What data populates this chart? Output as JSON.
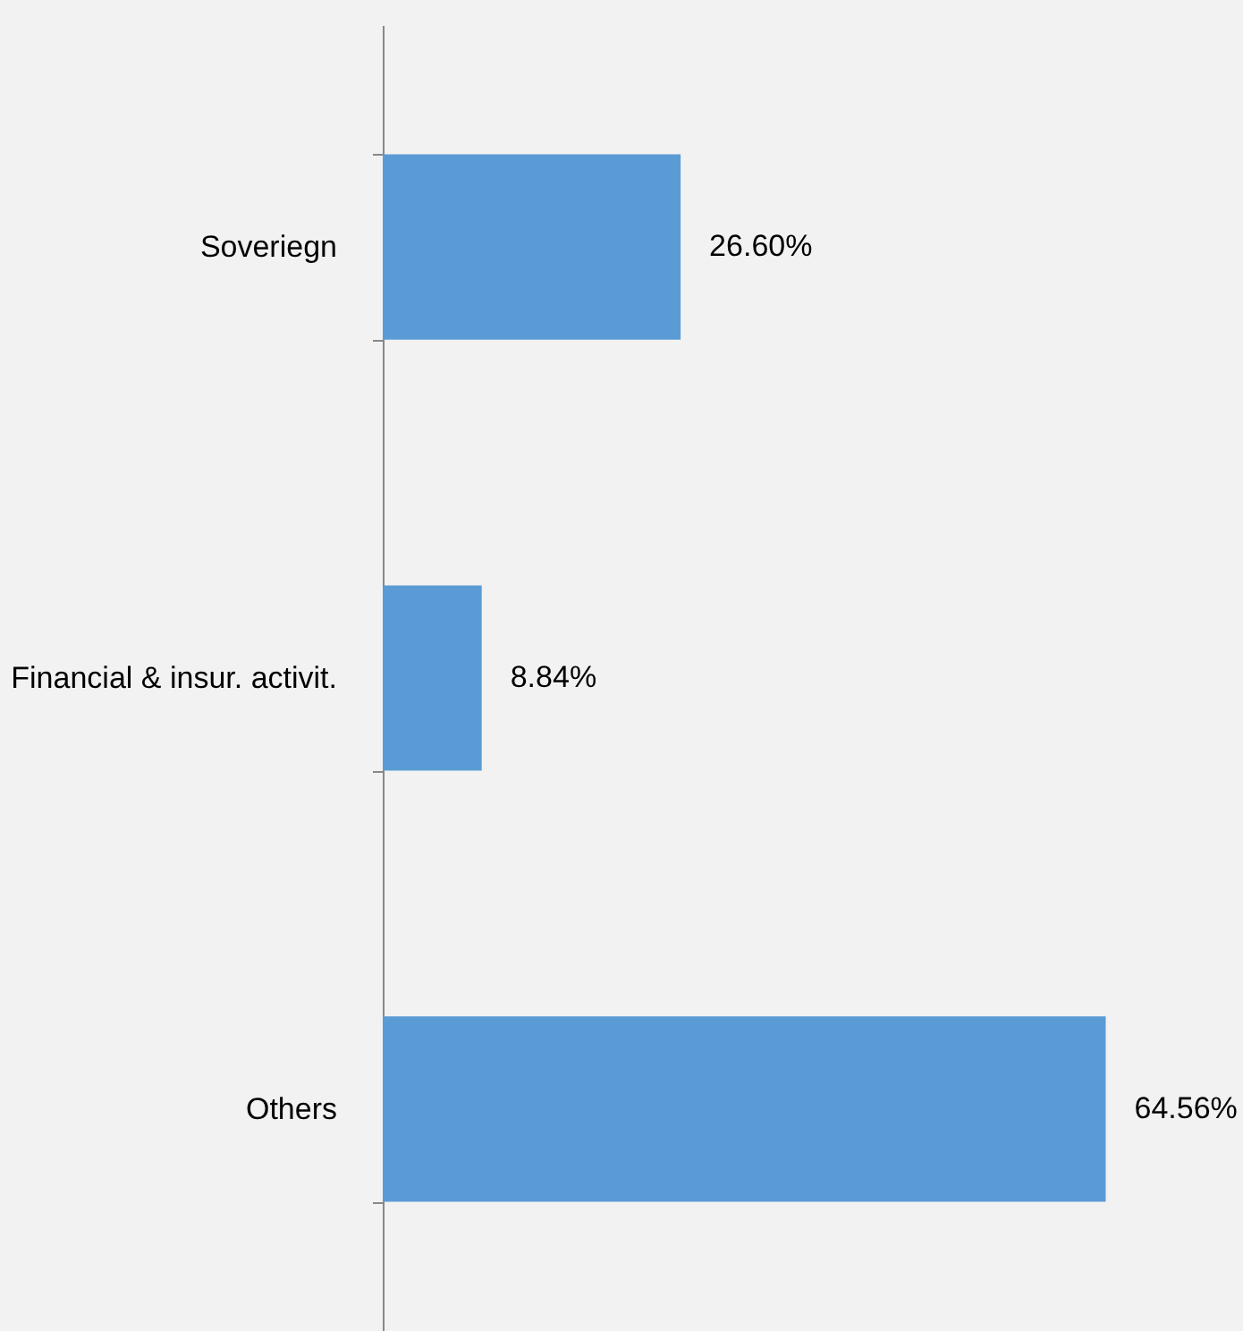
{
  "chart_data": {
    "type": "bar",
    "orientation": "horizontal",
    "categories": [
      "Soveriegn",
      "Financial & insur. activit.",
      "Others"
    ],
    "values": [
      26.6,
      8.84,
      64.56
    ],
    "value_labels": [
      "26.60%",
      "8.84%",
      "64.56%"
    ],
    "color": "#5b9bd5"
  }
}
